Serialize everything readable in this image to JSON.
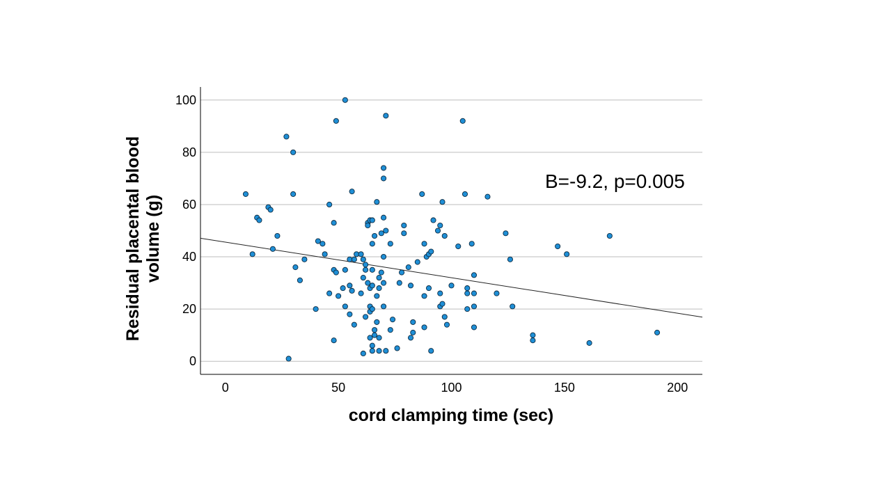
{
  "chart_data": {
    "type": "scatter",
    "title": "",
    "xlabel": "cord clamping time (sec)",
    "ylabel_lines": [
      "Residual placental blood",
      "volume (g)"
    ],
    "xlim": [
      -11,
      211
    ],
    "ylim": [
      -5,
      105
    ],
    "xticks": [
      0,
      50,
      100,
      150,
      200
    ],
    "yticks": [
      0,
      20,
      40,
      60,
      80,
      100
    ],
    "grid": "horizontal",
    "point_color": "#1f8fd6",
    "point_edge": "#0d2a40",
    "fit_line": {
      "x": [
        -11,
        211
      ],
      "y": [
        47.1,
        16.9
      ]
    },
    "annotation": "B=-9.2, p=0.005",
    "points": [
      [
        9,
        64
      ],
      [
        12,
        41
      ],
      [
        14,
        55
      ],
      [
        15,
        54
      ],
      [
        19,
        59
      ],
      [
        20,
        58
      ],
      [
        21,
        43
      ],
      [
        23,
        48
      ],
      [
        27,
        86
      ],
      [
        28,
        1
      ],
      [
        30,
        80
      ],
      [
        30,
        64
      ],
      [
        31,
        36
      ],
      [
        33,
        31
      ],
      [
        35,
        39
      ],
      [
        40,
        20
      ],
      [
        41,
        46
      ],
      [
        43,
        45
      ],
      [
        44,
        41
      ],
      [
        46,
        60
      ],
      [
        46,
        26
      ],
      [
        48,
        8
      ],
      [
        48,
        53
      ],
      [
        48,
        35
      ],
      [
        49,
        92
      ],
      [
        49,
        34
      ],
      [
        50,
        25
      ],
      [
        52,
        28
      ],
      [
        53,
        100
      ],
      [
        53,
        21
      ],
      [
        53,
        35
      ],
      [
        55,
        39
      ],
      [
        55,
        29
      ],
      [
        55,
        18
      ],
      [
        56,
        65
      ],
      [
        56,
        27
      ],
      [
        57,
        14
      ],
      [
        57,
        39
      ],
      [
        58,
        41
      ],
      [
        60,
        41
      ],
      [
        60,
        26
      ],
      [
        61,
        32
      ],
      [
        61,
        3
      ],
      [
        61,
        39
      ],
      [
        62,
        17
      ],
      [
        62,
        37
      ],
      [
        62,
        35
      ],
      [
        63,
        30
      ],
      [
        63,
        53
      ],
      [
        63,
        52
      ],
      [
        64,
        54
      ],
      [
        64,
        28
      ],
      [
        64,
        21
      ],
      [
        64,
        19
      ],
      [
        64,
        9
      ],
      [
        65,
        45
      ],
      [
        65,
        6
      ],
      [
        65,
        29
      ],
      [
        65,
        35
      ],
      [
        65,
        4
      ],
      [
        65,
        20
      ],
      [
        65,
        54
      ],
      [
        66,
        12
      ],
      [
        66,
        48
      ],
      [
        66,
        10
      ],
      [
        67,
        61
      ],
      [
        67,
        25
      ],
      [
        67,
        15
      ],
      [
        68,
        9
      ],
      [
        68,
        32
      ],
      [
        68,
        28
      ],
      [
        68,
        4
      ],
      [
        69,
        49
      ],
      [
        69,
        34
      ],
      [
        70,
        40
      ],
      [
        70,
        55
      ],
      [
        70,
        74
      ],
      [
        70,
        70
      ],
      [
        70,
        30
      ],
      [
        70,
        21
      ],
      [
        71,
        94
      ],
      [
        71,
        50
      ],
      [
        71,
        4
      ],
      [
        73,
        45
      ],
      [
        73,
        12
      ],
      [
        74,
        16
      ],
      [
        76,
        5
      ],
      [
        77,
        30
      ],
      [
        78,
        34
      ],
      [
        79,
        52
      ],
      [
        79,
        49
      ],
      [
        81,
        36
      ],
      [
        82,
        29
      ],
      [
        82,
        9
      ],
      [
        83,
        15
      ],
      [
        83,
        11
      ],
      [
        85,
        38
      ],
      [
        87,
        64
      ],
      [
        88,
        25
      ],
      [
        88,
        45
      ],
      [
        88,
        13
      ],
      [
        89,
        40
      ],
      [
        90,
        28
      ],
      [
        90,
        41
      ],
      [
        91,
        42
      ],
      [
        91,
        4
      ],
      [
        92,
        54
      ],
      [
        94,
        50
      ],
      [
        95,
        52
      ],
      [
        95,
        26
      ],
      [
        95,
        21
      ],
      [
        96,
        61
      ],
      [
        96,
        22
      ],
      [
        97,
        48
      ],
      [
        97,
        17
      ],
      [
        98,
        14
      ],
      [
        100,
        29
      ],
      [
        103,
        44
      ],
      [
        105,
        92
      ],
      [
        106,
        64
      ],
      [
        107,
        20
      ],
      [
        107,
        28
      ],
      [
        107,
        26
      ],
      [
        109,
        45
      ],
      [
        110,
        33
      ],
      [
        110,
        26
      ],
      [
        110,
        21
      ],
      [
        110,
        13
      ],
      [
        116,
        63
      ],
      [
        120,
        26
      ],
      [
        124,
        49
      ],
      [
        126,
        39
      ],
      [
        127,
        21
      ],
      [
        136,
        10
      ],
      [
        136,
        8
      ],
      [
        147,
        44
      ],
      [
        151,
        41
      ],
      [
        161,
        7
      ],
      [
        170,
        48
      ],
      [
        191,
        11
      ]
    ]
  }
}
